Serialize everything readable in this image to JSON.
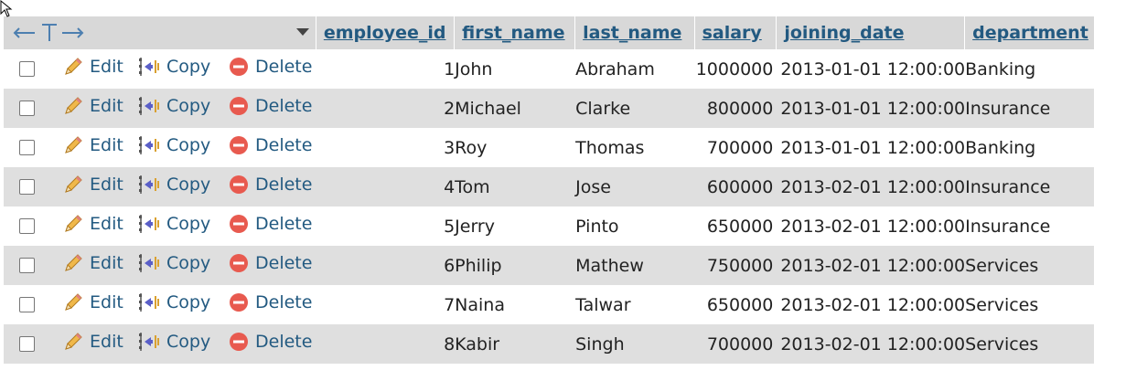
{
  "header": {
    "sort_icon": "sort-arrow-icon",
    "columns": [
      "employee_id",
      "first_name",
      "last_name",
      "salary",
      "joining_date",
      "department"
    ]
  },
  "actions": {
    "edit_label": "Edit",
    "copy_label": "Copy",
    "delete_label": "Delete"
  },
  "rows": [
    {
      "employee_id": "1",
      "first_name": "John",
      "last_name": "Abraham",
      "salary": "1000000",
      "joining_date": "2013-01-01 12:00:00",
      "department": "Banking"
    },
    {
      "employee_id": "2",
      "first_name": "Michael",
      "last_name": "Clarke",
      "salary": "800000",
      "joining_date": "2013-01-01 12:00:00",
      "department": "Insurance"
    },
    {
      "employee_id": "3",
      "first_name": "Roy",
      "last_name": "Thomas",
      "salary": "700000",
      "joining_date": "2013-01-01 12:00:00",
      "department": "Banking"
    },
    {
      "employee_id": "4",
      "first_name": "Tom",
      "last_name": "Jose",
      "salary": "600000",
      "joining_date": "2013-02-01 12:00:00",
      "department": "Insurance"
    },
    {
      "employee_id": "5",
      "first_name": "Jerry",
      "last_name": "Pinto",
      "salary": "650000",
      "joining_date": "2013-02-01 12:00:00",
      "department": "Insurance"
    },
    {
      "employee_id": "6",
      "first_name": "Philip",
      "last_name": "Mathew",
      "salary": "750000",
      "joining_date": "2013-02-01 12:00:00",
      "department": "Services"
    },
    {
      "employee_id": "7",
      "first_name": "Naina",
      "last_name": "Talwar",
      "salary": "650000",
      "joining_date": "2013-02-01 12:00:00",
      "department": "Services"
    },
    {
      "employee_id": "8",
      "first_name": "Kabir",
      "last_name": "Singh",
      "salary": "700000",
      "joining_date": "2013-02-01 12:00:00",
      "department": "Services"
    }
  ],
  "colors": {
    "link": "#235a81",
    "header_bg": "#d8d8d8",
    "row_alt_bg": "#dfdfdf",
    "delete_icon": "#e85a4f",
    "edit_icon": "#e8a33a",
    "copy_icon": "#5a5fc8"
  }
}
